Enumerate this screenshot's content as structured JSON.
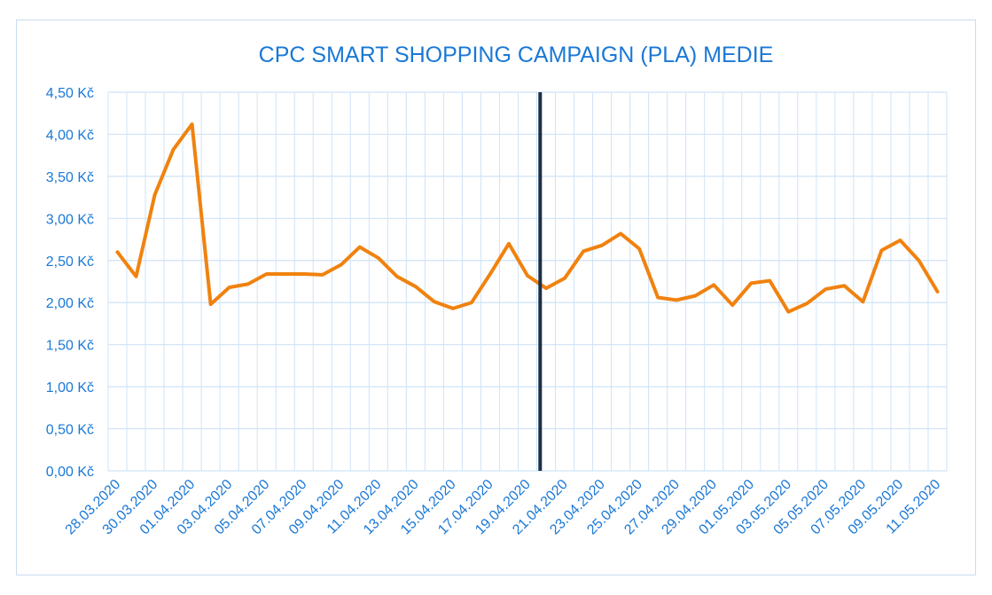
{
  "chart_data": {
    "type": "line",
    "title": "CPC SMART SHOPPING CAMPAIGN (PLA) MEDIE",
    "xlabel": "",
    "ylabel": "",
    "ylim": [
      0,
      4.5
    ],
    "yticks": [
      {
        "value": 0.0,
        "label": "0,00 Kč"
      },
      {
        "value": 0.5,
        "label": "0,50 Kč"
      },
      {
        "value": 1.0,
        "label": "1,00 Kč"
      },
      {
        "value": 1.5,
        "label": "1,50 Kč"
      },
      {
        "value": 2.0,
        "label": "2,00 Kč"
      },
      {
        "value": 2.5,
        "label": "2,50 Kč"
      },
      {
        "value": 3.0,
        "label": "3,00 Kč"
      },
      {
        "value": 3.5,
        "label": "3,50 Kč"
      },
      {
        "value": 4.0,
        "label": "4,00 Kč"
      },
      {
        "value": 4.5,
        "label": "4,50 Kč"
      }
    ],
    "x": [
      "28.03.2020",
      "29.03.2020",
      "30.03.2020",
      "31.03.2020",
      "01.04.2020",
      "02.04.2020",
      "03.04.2020",
      "04.04.2020",
      "05.04.2020",
      "06.04.2020",
      "07.04.2020",
      "08.04.2020",
      "09.04.2020",
      "10.04.2020",
      "11.04.2020",
      "12.04.2020",
      "13.04.2020",
      "14.04.2020",
      "15.04.2020",
      "16.04.2020",
      "17.04.2020",
      "18.04.2020",
      "19.04.2020",
      "20.04.2020",
      "21.04.2020",
      "22.04.2020",
      "23.04.2020",
      "24.04.2020",
      "25.04.2020",
      "26.04.2020",
      "27.04.2020",
      "28.04.2020",
      "29.04.2020",
      "30.04.2020",
      "01.05.2020",
      "02.05.2020",
      "03.05.2020",
      "04.05.2020",
      "05.05.2020",
      "06.05.2020",
      "07.05.2020",
      "08.05.2020",
      "09.05.2020",
      "10.05.2020",
      "11.05.2020"
    ],
    "x_tick_labels": [
      "28.03.2020",
      "30.03.2020",
      "01.04.2020",
      "03.04.2020",
      "05.04.2020",
      "07.04.2020",
      "09.04.2020",
      "11.04.2020",
      "13.04.2020",
      "15.04.2020",
      "17.04.2020",
      "19.04.2020",
      "21.04.2020",
      "23.04.2020",
      "25.04.2020",
      "27.04.2020",
      "29.04.2020",
      "01.05.2020",
      "03.05.2020",
      "05.05.2020",
      "07.05.2020",
      "09.05.2020",
      "11.05.2020"
    ],
    "series": [
      {
        "color": "#f0820f",
        "values": [
          2.6,
          2.31,
          3.28,
          3.82,
          4.12,
          1.98,
          2.18,
          2.22,
          2.34,
          2.34,
          2.34,
          2.33,
          2.45,
          2.66,
          2.53,
          2.31,
          2.19,
          2.01,
          1.93,
          2.0,
          2.34,
          2.7,
          2.32,
          2.17,
          2.29,
          2.61,
          2.68,
          2.82,
          2.64,
          2.06,
          2.03,
          2.08,
          2.21,
          1.97,
          2.23,
          2.26,
          1.89,
          1.99,
          2.16,
          2.2,
          2.01,
          2.62,
          2.74,
          2.5,
          2.13
        ]
      }
    ],
    "reference_line": {
      "x": "20.04.2020",
      "color": "#1c2f4a"
    },
    "grid": true,
    "legend": "none",
    "colors": {
      "text": "#1a78d6",
      "grid": "#cfe3f7",
      "border": "#c9ddf0",
      "line": "#f0820f"
    }
  }
}
